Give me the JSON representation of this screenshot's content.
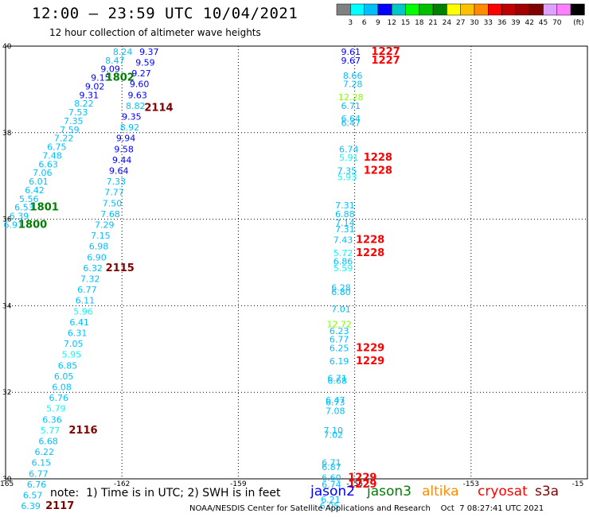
{
  "header": {
    "title": "12:00 – 23:59 UTC 10/04/2021",
    "subtitle": "12 hour collection of altimeter wave heights"
  },
  "colorbar": {
    "colors": [
      "#808080",
      "#00ffff",
      "#00bfff",
      "#0000ff",
      "#00c8c8",
      "#00ff00",
      "#00c000",
      "#008000",
      "#ffff00",
      "#ffc000",
      "#ff8c00",
      "#ff0000",
      "#c00000",
      "#a00000",
      "#800000",
      "#e0a0ff",
      "#ff80ff",
      "#000000"
    ],
    "labels": [
      "3",
      "6",
      "9",
      "12",
      "15",
      "18",
      "21",
      "24",
      "27",
      "30",
      "33",
      "36",
      "39",
      "42",
      "45",
      "70",
      "(ft)"
    ]
  },
  "axes": {
    "lon_ticks": [
      "-165",
      "-162",
      "-159",
      "-156",
      "-153",
      "-15"
    ],
    "lat_ticks": [
      "40",
      "38",
      "36",
      "34",
      "32",
      "30"
    ]
  },
  "observations": [
    {
      "t": "8.24",
      "c": "#00bfff",
      "lon": -161.98,
      "lat": 39.8
    },
    {
      "t": "8.47",
      "c": "#00bfff",
      "lon": -162.18,
      "lat": 39.6
    },
    {
      "t": "9.09",
      "c": "#0000ff",
      "lon": -162.3,
      "lat": 39.4
    },
    {
      "t": "9.15",
      "c": "#0000ff",
      "lon": -162.55,
      "lat": 39.2
    },
    {
      "t": "9.02",
      "c": "#0000ff",
      "lon": -162.7,
      "lat": 39.0
    },
    {
      "t": "9.31",
      "c": "#0000ff",
      "lon": -162.85,
      "lat": 38.8
    },
    {
      "t": "8.22",
      "c": "#00bfff",
      "lon": -162.98,
      "lat": 38.6
    },
    {
      "t": "7.53",
      "c": "#00bfff",
      "lon": -163.13,
      "lat": 38.4
    },
    {
      "t": "7.35",
      "c": "#00bfff",
      "lon": -163.25,
      "lat": 38.2
    },
    {
      "t": "7.59",
      "c": "#00bfff",
      "lon": -163.35,
      "lat": 38.0
    },
    {
      "t": "7.22",
      "c": "#00bfff",
      "lon": -163.5,
      "lat": 37.8
    },
    {
      "t": "6.75",
      "c": "#00bfff",
      "lon": -163.68,
      "lat": 37.6
    },
    {
      "t": "7.48",
      "c": "#00bfff",
      "lon": -163.8,
      "lat": 37.4
    },
    {
      "t": "6.63",
      "c": "#00bfff",
      "lon": -163.9,
      "lat": 37.2
    },
    {
      "t": "7.06",
      "c": "#00bfff",
      "lon": -164.05,
      "lat": 37.0
    },
    {
      "t": "6.01",
      "c": "#00bfff",
      "lon": -164.15,
      "lat": 36.8
    },
    {
      "t": "6.42",
      "c": "#00bfff",
      "lon": -164.25,
      "lat": 36.6
    },
    {
      "t": "5.56",
      "c": "#00bfff",
      "lon": -164.4,
      "lat": 36.4
    },
    {
      "t": "6.53",
      "c": "#00bfff",
      "lon": -164.52,
      "lat": 36.2
    },
    {
      "t": "6.39",
      "c": "#00bfff",
      "lon": -164.65,
      "lat": 36.0
    },
    {
      "t": "6.91",
      "c": "#00bfff",
      "lon": -164.8,
      "lat": 35.8
    },
    {
      "t": "9.37",
      "c": "#0000ff",
      "lon": -161.3,
      "lat": 39.8
    },
    {
      "t": "9.59",
      "c": "#0000ff",
      "lon": -161.4,
      "lat": 39.55
    },
    {
      "t": "9.27",
      "c": "#0000ff",
      "lon": -161.5,
      "lat": 39.3
    },
    {
      "t": "9.60",
      "c": "#0000ff",
      "lon": -161.55,
      "lat": 39.05
    },
    {
      "t": "9.63",
      "c": "#0000ff",
      "lon": -161.6,
      "lat": 38.8
    },
    {
      "t": "8.82",
      "c": "#00bfff",
      "lon": -161.65,
      "lat": 38.55
    },
    {
      "t": "9.35",
      "c": "#0000ff",
      "lon": -161.75,
      "lat": 38.3
    },
    {
      "t": "8.92",
      "c": "#00bfff",
      "lon": -161.8,
      "lat": 38.05
    },
    {
      "t": "9.94",
      "c": "#0000ff",
      "lon": -161.9,
      "lat": 37.8
    },
    {
      "t": "9.58",
      "c": "#0000ff",
      "lon": -161.95,
      "lat": 37.55
    },
    {
      "t": "9.44",
      "c": "#0000ff",
      "lon": -162.0,
      "lat": 37.3
    },
    {
      "t": "9.64",
      "c": "#0000ff",
      "lon": -162.08,
      "lat": 37.05
    },
    {
      "t": "7.33",
      "c": "#00bfff",
      "lon": -162.15,
      "lat": 36.8
    },
    {
      "t": "7.77",
      "c": "#00bfff",
      "lon": -162.2,
      "lat": 36.55
    },
    {
      "t": "7.50",
      "c": "#00bfff",
      "lon": -162.25,
      "lat": 36.3
    },
    {
      "t": "7.68",
      "c": "#00bfff",
      "lon": -162.3,
      "lat": 36.05
    },
    {
      "t": "7.29",
      "c": "#00bfff",
      "lon": -162.45,
      "lat": 35.8
    },
    {
      "t": "7.15",
      "c": "#00bfff",
      "lon": -162.55,
      "lat": 35.55
    },
    {
      "t": "6.98",
      "c": "#00bfff",
      "lon": -162.6,
      "lat": 35.3
    },
    {
      "t": "6.90",
      "c": "#00bfff",
      "lon": -162.65,
      "lat": 35.05
    },
    {
      "t": "6.32",
      "c": "#00bfff",
      "lon": -162.75,
      "lat": 34.8
    },
    {
      "t": "7.32",
      "c": "#00bfff",
      "lon": -162.82,
      "lat": 34.55
    },
    {
      "t": "6.77",
      "c": "#00bfff",
      "lon": -162.9,
      "lat": 34.3
    },
    {
      "t": "6.11",
      "c": "#00bfff",
      "lon": -162.95,
      "lat": 34.05
    },
    {
      "t": "5.96",
      "c": "#00ffff",
      "lon": -163.0,
      "lat": 33.8
    },
    {
      "t": "6.41",
      "c": "#00bfff",
      "lon": -163.1,
      "lat": 33.55
    },
    {
      "t": "6.31",
      "c": "#00bfff",
      "lon": -163.15,
      "lat": 33.3
    },
    {
      "t": "7.05",
      "c": "#00bfff",
      "lon": -163.25,
      "lat": 33.05
    },
    {
      "t": "5.95",
      "c": "#00ffff",
      "lon": -163.3,
      "lat": 32.8
    },
    {
      "t": "6.85",
      "c": "#00bfff",
      "lon": -163.4,
      "lat": 32.55
    },
    {
      "t": "6.05",
      "c": "#00bfff",
      "lon": -163.5,
      "lat": 32.3
    },
    {
      "t": "6.08",
      "c": "#00bfff",
      "lon": -163.55,
      "lat": 32.05
    },
    {
      "t": "6.76",
      "c": "#00bfff",
      "lon": -163.63,
      "lat": 31.8
    },
    {
      "t": "5.79",
      "c": "#00ffff",
      "lon": -163.7,
      "lat": 31.55
    },
    {
      "t": "6.36",
      "c": "#00bfff",
      "lon": -163.8,
      "lat": 31.3
    },
    {
      "t": "5.77",
      "c": "#00ffff",
      "lon": -163.85,
      "lat": 31.05
    },
    {
      "t": "6.68",
      "c": "#00bfff",
      "lon": -163.9,
      "lat": 30.8
    },
    {
      "t": "6.22",
      "c": "#00bfff",
      "lon": -164.0,
      "lat": 30.55
    },
    {
      "t": "6.15",
      "c": "#00bfff",
      "lon": -164.08,
      "lat": 30.3
    },
    {
      "t": "6.77",
      "c": "#00bfff",
      "lon": -164.15,
      "lat": 30.05
    },
    {
      "t": "6.76",
      "c": "#00bfff",
      "lon": -164.2,
      "lat": 29.8
    },
    {
      "t": "6.57",
      "c": "#00bfff",
      "lon": -164.3,
      "lat": 29.55
    },
    {
      "t": "6.39",
      "c": "#00bfff",
      "lon": -164.35,
      "lat": 29.3
    },
    {
      "t": "9.61",
      "c": "#0000ff",
      "lon": -156.1,
      "lat": 39.8
    },
    {
      "t": "9.67",
      "c": "#0000ff",
      "lon": -156.1,
      "lat": 39.6
    },
    {
      "t": "8.66",
      "c": "#00bfff",
      "lon": -156.05,
      "lat": 39.25
    },
    {
      "t": "7.28",
      "c": "#00bfff",
      "lon": -156.05,
      "lat": 39.05
    },
    {
      "t": "12.28",
      "c": "#80ff00",
      "lon": -156.1,
      "lat": 38.75
    },
    {
      "t": "6.71",
      "c": "#00bfff",
      "lon": -156.1,
      "lat": 38.55
    },
    {
      "t": "6.64",
      "c": "#00bfff",
      "lon": -156.1,
      "lat": 38.25
    },
    {
      "t": "6.47",
      "c": "#00bfff",
      "lon": -156.1,
      "lat": 38.15
    },
    {
      "t": "6.74",
      "c": "#00bfff",
      "lon": -156.15,
      "lat": 37.55
    },
    {
      "t": "5.91",
      "c": "#00ffff",
      "lon": -156.15,
      "lat": 37.35
    },
    {
      "t": "7.35",
      "c": "#00bfff",
      "lon": -156.2,
      "lat": 37.05
    },
    {
      "t": "5.93",
      "c": "#00ffff",
      "lon": -156.2,
      "lat": 36.9
    },
    {
      "t": "7.31",
      "c": "#00bfff",
      "lon": -156.25,
      "lat": 36.25
    },
    {
      "t": "6.88",
      "c": "#00bfff",
      "lon": -156.25,
      "lat": 36.05
    },
    {
      "t": "7.14",
      "c": "#00bfff",
      "lon": -156.25,
      "lat": 35.85
    },
    {
      "t": "7.31",
      "c": "#00bfff",
      "lon": -156.25,
      "lat": 35.7
    },
    {
      "t": "7.43",
      "c": "#00bfff",
      "lon": -156.3,
      "lat": 35.45
    },
    {
      "t": "5.72",
      "c": "#00ffff",
      "lon": -156.3,
      "lat": 35.15
    },
    {
      "t": "6.86",
      "c": "#00bfff",
      "lon": -156.3,
      "lat": 34.95
    },
    {
      "t": "5.59",
      "c": "#00ffff",
      "lon": -156.3,
      "lat": 34.8
    },
    {
      "t": "6.28",
      "c": "#00bfff",
      "lon": -156.35,
      "lat": 34.35
    },
    {
      "t": "6.80",
      "c": "#00bfff",
      "lon": -156.35,
      "lat": 34.25
    },
    {
      "t": "7.01",
      "c": "#00bfff",
      "lon": -156.35,
      "lat": 33.85
    },
    {
      "t": "12.72",
      "c": "#80ff00",
      "lon": -156.4,
      "lat": 33.5
    },
    {
      "t": "6.23",
      "c": "#00bfff",
      "lon": -156.4,
      "lat": 33.35
    },
    {
      "t": "6.77",
      "c": "#00bfff",
      "lon": -156.4,
      "lat": 33.15
    },
    {
      "t": "6.25",
      "c": "#00bfff",
      "lon": -156.4,
      "lat": 32.95
    },
    {
      "t": "6.19",
      "c": "#00bfff",
      "lon": -156.4,
      "lat": 32.65
    },
    {
      "t": "6.71",
      "c": "#00bfff",
      "lon": -156.45,
      "lat": 32.25
    },
    {
      "t": "6.68",
      "c": "#00bfff",
      "lon": -156.45,
      "lat": 32.2
    },
    {
      "t": "6.47",
      "c": "#00bfff",
      "lon": -156.5,
      "lat": 31.75
    },
    {
      "t": "6.73",
      "c": "#00bfff",
      "lon": -156.5,
      "lat": 31.7
    },
    {
      "t": "7.08",
      "c": "#00bfff",
      "lon": -156.5,
      "lat": 31.5
    },
    {
      "t": "7.10",
      "c": "#00bfff",
      "lon": -156.55,
      "lat": 31.05
    },
    {
      "t": "7.02",
      "c": "#00bfff",
      "lon": -156.55,
      "lat": 30.95
    },
    {
      "t": "6.71",
      "c": "#00bfff",
      "lon": -156.6,
      "lat": 30.3
    },
    {
      "t": "6.87",
      "c": "#00bfff",
      "lon": -156.6,
      "lat": 30.2
    },
    {
      "t": "6.60",
      "c": "#00bfff",
      "lon": -156.6,
      "lat": 29.95
    },
    {
      "t": "6.74",
      "c": "#00bfff",
      "lon": -156.6,
      "lat": 29.8
    },
    {
      "t": "6.21",
      "c": "#00bfff",
      "lon": -156.62,
      "lat": 29.45
    },
    {
      "t": "6.05",
      "c": "#00bfff",
      "lon": -156.65,
      "lat": 29.3
    },
    {
      "t": "6.56",
      "c": "#00bfff",
      "lon": -156.65,
      "lat": 28.95
    },
    {
      "t": "7.06",
      "c": "#00bfff",
      "lon": -156.68,
      "lat": 28.65
    },
    {
      "t": "6.92",
      "c": "#00bfff",
      "lon": -156.68,
      "lat": 28.6
    }
  ],
  "time_labels": [
    {
      "t": "1802",
      "c": "#008000",
      "lon": -162.05,
      "lat": 39.2
    },
    {
      "t": "2114",
      "c": "#800000",
      "lon": -161.05,
      "lat": 38.5
    },
    {
      "t": "1801",
      "c": "#008000",
      "lon": -164.0,
      "lat": 36.2
    },
    {
      "t": "1800",
      "c": "#008000",
      "lon": -164.3,
      "lat": 35.8
    },
    {
      "t": "2115",
      "c": "#800000",
      "lon": -162.05,
      "lat": 34.8
    },
    {
      "t": "2116",
      "c": "#800000",
      "lon": -163.0,
      "lat": 31.05
    },
    {
      "t": "2117",
      "c": "#800000",
      "lon": -163.6,
      "lat": 29.3
    },
    {
      "t": "1227",
      "c": "#ff0000",
      "lon": -155.2,
      "lat": 39.8
    },
    {
      "t": "1227",
      "c": "#ff0000",
      "lon": -155.2,
      "lat": 39.6
    },
    {
      "t": "1228",
      "c": "#ff0000",
      "lon": -155.4,
      "lat": 37.35
    },
    {
      "t": "1228",
      "c": "#ff0000",
      "lon": -155.4,
      "lat": 37.05
    },
    {
      "t": "1228",
      "c": "#ff0000",
      "lon": -155.6,
      "lat": 35.45
    },
    {
      "t": "1228",
      "c": "#ff0000",
      "lon": -155.6,
      "lat": 35.15
    },
    {
      "t": "1229",
      "c": "#ff0000",
      "lon": -155.6,
      "lat": 32.95
    },
    {
      "t": "1229",
      "c": "#ff0000",
      "lon": -155.6,
      "lat": 32.65
    },
    {
      "t": "1229",
      "c": "#ff0000",
      "lon": -155.8,
      "lat": 29.95
    },
    {
      "t": "1229",
      "c": "#ff0000",
      "lon": -155.8,
      "lat": 29.8
    },
    {
      "t": "1230",
      "c": "#ff0000",
      "lon": -156.0,
      "lat": 28.65
    },
    {
      "t": "1230",
      "c": "#ff0000",
      "lon": -156.0,
      "lat": 28.6
    }
  ],
  "footer": {
    "note": "note:  1) Time is in UTC; 2) SWH is in feet",
    "satellites": [
      {
        "name": "jason2",
        "color": "#0000ff"
      },
      {
        "name": "jason3",
        "color": "#008000"
      },
      {
        "name": "altika",
        "color": "#ff8c00"
      },
      {
        "name": "cryosat",
        "color": "#ff0000"
      },
      {
        "name": "s3a",
        "color": "#800000"
      }
    ],
    "credit": "NOAA/NESDIS Center for Satellite Applications and Research    Oct  7 08:27:41 UTC 2021"
  }
}
